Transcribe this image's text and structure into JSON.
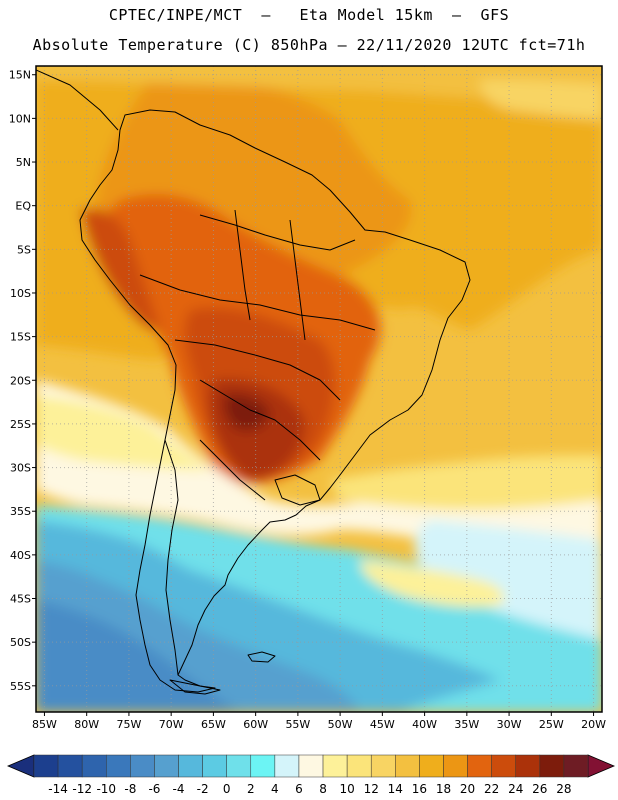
{
  "header": {
    "line1": "CPTEC/INPE/MCT  –   Eta Model 15km  –  GFS",
    "line2": "Absolute Temperature (C) 850hPa – 22/11/2020 12UTC fct=71h"
  },
  "map": {
    "lat_labels": [
      "15N",
      "10N",
      "5N",
      "EQ",
      "5S",
      "10S",
      "15S",
      "20S",
      "25S",
      "30S",
      "35S",
      "40S",
      "45S",
      "50S",
      "55S"
    ],
    "lon_labels": [
      "85W",
      "80W",
      "75W",
      "70W",
      "65W",
      "60W",
      "55W",
      "50W",
      "45W",
      "40W",
      "35W",
      "30W",
      "25W",
      "20W"
    ],
    "lat_values": [
      15,
      10,
      5,
      0,
      -5,
      -10,
      -15,
      -20,
      -25,
      -30,
      -35,
      -40,
      -45,
      -50,
      -55
    ],
    "lon_values": [
      -85,
      -80,
      -75,
      -70,
      -65,
      -60,
      -55,
      -50,
      -45,
      -40,
      -35,
      -30,
      -25,
      -20
    ],
    "extent": {
      "lon_min": -86,
      "lon_max": -19,
      "lat_min": -58,
      "lat_max": 16
    }
  },
  "colorbar": {
    "labels": [
      "-14",
      "-12",
      "-10",
      "-8",
      "-6",
      "-4",
      "-2",
      "0",
      "2",
      "4",
      "6",
      "8",
      "10",
      "12",
      "14",
      "16",
      "18",
      "20",
      "22",
      "24",
      "26",
      "28"
    ],
    "colors": [
      "#1c3f8e",
      "#24519f",
      "#2e64ad",
      "#3a78bb",
      "#4a8cc6",
      "#56a0cf",
      "#56b8dc",
      "#5ccbe3",
      "#6fe0ea",
      "#6cf4f4",
      "#d4f4fa",
      "#fef8e2",
      "#fdf199",
      "#fbe47a",
      "#f8d463",
      "#f3c040",
      "#efae1c",
      "#ec9614",
      "#e2640f",
      "#cc4c0c",
      "#ab320a",
      "#7d1c0c",
      "#6e1c24"
    ],
    "low_end_color": "#1a2f7c",
    "high_end_color": "#821133"
  }
}
